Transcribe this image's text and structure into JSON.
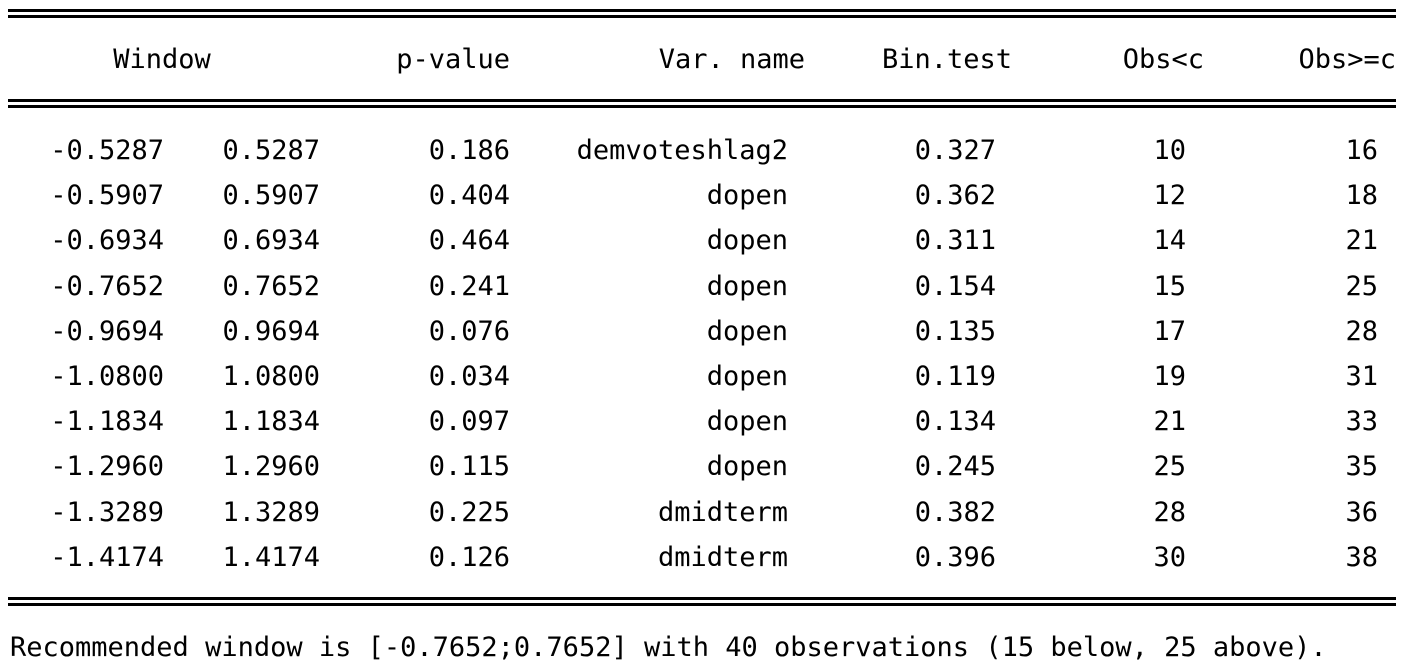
{
  "headers": {
    "window": "Window",
    "pvalue": "p-value",
    "varname": "Var. name",
    "bintest": "Bin.test",
    "obs_below": "Obs<c",
    "obs_above": "Obs>=c"
  },
  "rows": [
    {
      "lo": "-0.5287",
      "hi": "0.5287",
      "p": "0.186",
      "var": "demvoteshlag2",
      "bin": "0.327",
      "below": "10",
      "above": "16"
    },
    {
      "lo": "-0.5907",
      "hi": "0.5907",
      "p": "0.404",
      "var": "dopen",
      "bin": "0.362",
      "below": "12",
      "above": "18"
    },
    {
      "lo": "-0.6934",
      "hi": "0.6934",
      "p": "0.464",
      "var": "dopen",
      "bin": "0.311",
      "below": "14",
      "above": "21"
    },
    {
      "lo": "-0.7652",
      "hi": "0.7652",
      "p": "0.241",
      "var": "dopen",
      "bin": "0.154",
      "below": "15",
      "above": "25"
    },
    {
      "lo": "-0.9694",
      "hi": "0.9694",
      "p": "0.076",
      "var": "dopen",
      "bin": "0.135",
      "below": "17",
      "above": "28"
    },
    {
      "lo": "-1.0800",
      "hi": "1.0800",
      "p": "0.034",
      "var": "dopen",
      "bin": "0.119",
      "below": "19",
      "above": "31"
    },
    {
      "lo": "-1.1834",
      "hi": "1.1834",
      "p": "0.097",
      "var": "dopen",
      "bin": "0.134",
      "below": "21",
      "above": "33"
    },
    {
      "lo": "-1.2960",
      "hi": "1.2960",
      "p": "0.115",
      "var": "dopen",
      "bin": "0.245",
      "below": "25",
      "above": "35"
    },
    {
      "lo": "-1.3289",
      "hi": "1.3289",
      "p": "0.225",
      "var": "dmidterm",
      "bin": "0.382",
      "below": "28",
      "above": "36"
    },
    {
      "lo": "-1.4174",
      "hi": "1.4174",
      "p": "0.126",
      "var": "dmidterm",
      "bin": "0.396",
      "below": "30",
      "above": "38"
    }
  ],
  "footer": "Recommended window is [-0.7652;0.7652] with 40 observations (15 below, 25 above)."
}
